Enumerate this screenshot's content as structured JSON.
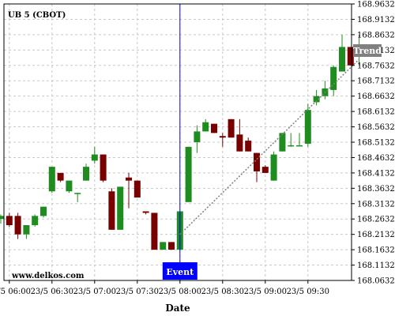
{
  "chart_data": {
    "type": "candlestick",
    "title": "UB 5 (CBOT)",
    "watermark": "www.delkos.com",
    "xlabel": "Date",
    "ylabel": "",
    "grid": true,
    "x_ticks": [
      "23/5 06:00",
      "23/5 06:30",
      "23/5 07:00",
      "23/5 07:30",
      "23/5 08:00",
      "23/5 08:30",
      "23/5 09:00",
      "23/5 09:30"
    ],
    "y_ticks": [
      "168.9632",
      "168.9132",
      "168.8632",
      "168.8132",
      "168.7632",
      "168.7132",
      "168.6632",
      "168.6132",
      "168.5632",
      "168.5132",
      "168.4632",
      "168.4132",
      "168.3632",
      "168.3132",
      "168.2632",
      "168.2132",
      "168.1632",
      "168.1132",
      "168.0632"
    ],
    "ylim": [
      168.0632,
      168.9632
    ],
    "colors": {
      "up": "#1e8c1e",
      "down": "#7a0000",
      "grid": "#c8c8c8",
      "event": "#0000ff",
      "trend_label_bg": "#808080"
    },
    "candles": [
      {
        "time": "05:54",
        "open": 168.2632,
        "high": 168.2782,
        "low": 168.2482,
        "close": 168.2732
      },
      {
        "time": "06:00",
        "open": 168.2732,
        "high": 168.2832,
        "low": 168.2382,
        "close": 168.2432
      },
      {
        "time": "06:06",
        "open": 168.2732,
        "high": 168.2832,
        "low": 168.1982,
        "close": 168.2132
      },
      {
        "time": "06:12",
        "open": 168.2132,
        "high": 168.2382,
        "low": 168.1982,
        "close": 168.2432
      },
      {
        "time": "06:18",
        "open": 168.2432,
        "high": 168.2782,
        "low": 168.2382,
        "close": 168.2732
      },
      {
        "time": "06:24",
        "open": 168.2732,
        "high": 168.3032,
        "low": 168.2682,
        "close": 168.3032
      },
      {
        "time": "06:30",
        "open": 168.3532,
        "high": 168.4332,
        "low": 168.3482,
        "close": 168.4332
      },
      {
        "time": "06:36",
        "open": 168.4132,
        "high": 168.4132,
        "low": 168.3832,
        "close": 168.3882
      },
      {
        "time": "06:42",
        "open": 168.3532,
        "high": 168.3882,
        "low": 168.3482,
        "close": 168.3882
      },
      {
        "time": "06:48",
        "open": 168.3482,
        "high": 168.3482,
        "low": 168.3182,
        "close": 168.3482
      },
      {
        "time": "06:54",
        "open": 168.3882,
        "high": 168.4432,
        "low": 168.3882,
        "close": 168.4332
      },
      {
        "time": "07:00",
        "open": 168.4532,
        "high": 168.4982,
        "low": 168.4432,
        "close": 168.4732
      },
      {
        "time": "07:06",
        "open": 168.4732,
        "high": 168.4732,
        "low": 168.3832,
        "close": 168.3882
      },
      {
        "time": "07:12",
        "open": 168.3532,
        "high": 168.3632,
        "low": 168.2282,
        "close": 168.2282
      },
      {
        "time": "07:18",
        "open": 168.2282,
        "high": 168.3682,
        "low": 168.2282,
        "close": 168.3682
      },
      {
        "time": "07:24",
        "open": 168.3982,
        "high": 168.4132,
        "low": 168.2982,
        "close": 168.3882
      },
      {
        "time": "07:30",
        "open": 168.3882,
        "high": 168.3882,
        "low": 168.3332,
        "close": 168.3332
      },
      {
        "time": "07:36",
        "open": 168.2882,
        "high": 168.2882,
        "low": 168.2782,
        "close": 168.2832
      },
      {
        "time": "07:42",
        "open": 168.2832,
        "high": 168.2832,
        "low": 168.1632,
        "close": 168.1632
      },
      {
        "time": "07:48",
        "open": 168.1632,
        "high": 168.1882,
        "low": 168.1632,
        "close": 168.1882
      },
      {
        "time": "07:54",
        "open": 168.1882,
        "high": 168.1882,
        "low": 168.1632,
        "close": 168.1632
      },
      {
        "time": "08:00",
        "open": 168.1632,
        "high": 168.2882,
        "low": 168.1632,
        "close": 168.2882
      },
      {
        "time": "08:06",
        "open": 168.3182,
        "high": 168.4982,
        "low": 168.3182,
        "close": 168.4982
      },
      {
        "time": "08:12",
        "open": 168.5132,
        "high": 168.5682,
        "low": 168.4782,
        "close": 168.5482
      },
      {
        "time": "08:18",
        "open": 168.5482,
        "high": 168.5882,
        "low": 168.5482,
        "close": 168.5782
      },
      {
        "time": "08:24",
        "open": 168.5732,
        "high": 168.5732,
        "low": 168.5432,
        "close": 168.5432
      },
      {
        "time": "08:30",
        "open": 168.5332,
        "high": 168.5432,
        "low": 168.4982,
        "close": 168.5282
      },
      {
        "time": "08:36",
        "open": 168.5882,
        "high": 168.5882,
        "low": 168.5282,
        "close": 168.5282
      },
      {
        "time": "08:42",
        "open": 168.5382,
        "high": 168.5882,
        "low": 168.4832,
        "close": 168.4832
      },
      {
        "time": "08:48",
        "open": 168.5182,
        "high": 168.5282,
        "low": 168.4832,
        "close": 168.4832
      },
      {
        "time": "08:54",
        "open": 168.4782,
        "high": 168.4782,
        "low": 168.3832,
        "close": 168.4182
      },
      {
        "time": "09:00",
        "open": 168.4332,
        "high": 168.4382,
        "low": 168.4132,
        "close": 168.4132
      },
      {
        "time": "09:06",
        "open": 168.3882,
        "high": 168.4832,
        "low": 168.3882,
        "close": 168.4732
      },
      {
        "time": "09:12",
        "open": 168.4832,
        "high": 168.5432,
        "low": 168.4832,
        "close": 168.5432
      },
      {
        "time": "09:18",
        "open": 168.5032,
        "high": 168.5432,
        "low": 168.4982,
        "close": 168.5032
      },
      {
        "time": "09:24",
        "open": 168.5032,
        "high": 168.5432,
        "low": 168.5032,
        "close": 168.5032
      },
      {
        "time": "09:30",
        "open": 168.5082,
        "high": 168.6382,
        "low": 168.4982,
        "close": 168.6182
      },
      {
        "time": "09:36",
        "open": 168.6432,
        "high": 168.6832,
        "low": 168.6332,
        "close": 168.6632
      },
      {
        "time": "09:42",
        "open": 168.6632,
        "high": 168.7132,
        "low": 168.6532,
        "close": 168.6882
      },
      {
        "time": "09:48",
        "open": 168.6832,
        "high": 168.7632,
        "low": 168.6632,
        "close": 168.7582
      },
      {
        "time": "09:54",
        "open": 168.7432,
        "high": 168.8632,
        "low": 168.7432,
        "close": 168.8232
      },
      {
        "time": "10:00",
        "open": 168.8232,
        "high": 168.8232,
        "low": 168.7632,
        "close": 168.7632
      },
      {
        "time": "10:06",
        "open": 168.7932,
        "high": 168.8632,
        "low": 168.7632,
        "close": 168.8232
      }
    ],
    "event": {
      "label": "Event",
      "time": "08:00"
    },
    "trend": {
      "label": "Trend",
      "start": {
        "time": "08:00",
        "value": 168.2132
      },
      "end": {
        "time": "10:06",
        "value": 168.7832
      }
    }
  }
}
